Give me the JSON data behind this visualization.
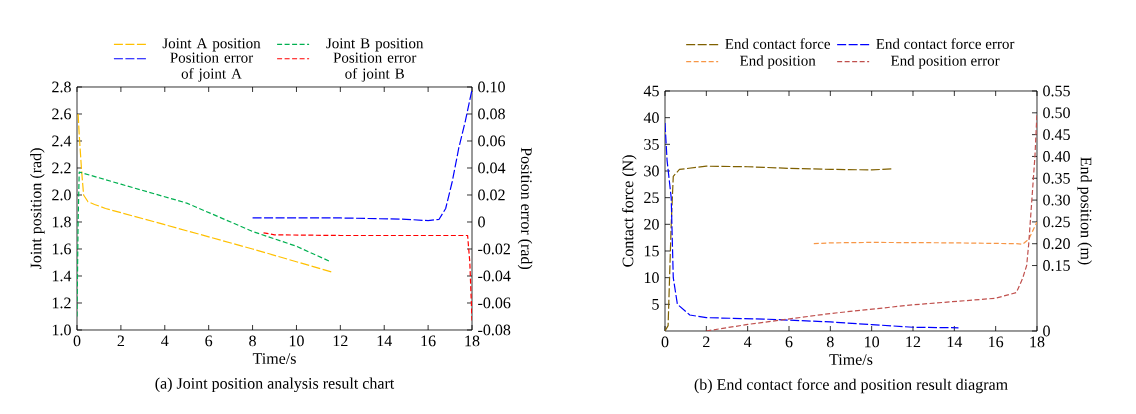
{
  "chart_data": [
    {
      "type": "line",
      "title": "(a) Joint position analysis result chart",
      "xlabel": "Time/s",
      "ylabel": "Joint position (rad)",
      "y2label": "Position error (rad)",
      "xlim": [
        0,
        18
      ],
      "xticks": [
        0,
        2,
        4,
        6,
        8,
        10,
        12,
        14,
        16,
        18
      ],
      "ylim": [
        1.0,
        2.8
      ],
      "yticks": [
        {
          "value": 1.0,
          "label": "1.0"
        },
        1.2,
        1.4,
        1.6,
        1.8,
        {
          "value": 2.0,
          "label": "2.0"
        },
        2.2,
        2.4,
        2.6,
        2.8
      ],
      "y2lim": [
        -0.08,
        0.1
      ],
      "y2ticks": [
        {
          "value": -0.08,
          "label": "-0.08"
        },
        {
          "value": -0.06,
          "label": "-0.06"
        },
        {
          "value": -0.04,
          "label": "-0.04"
        },
        {
          "value": -0.02,
          "label": "-0.02"
        },
        0,
        {
          "value": 0.02,
          "label": "0.02"
        },
        {
          "value": 0.04,
          "label": "0.04"
        },
        {
          "value": 0.06,
          "label": "0.06"
        },
        {
          "value": 0.08,
          "label": "0.08"
        },
        {
          "value": 0.1,
          "label": "0.10"
        }
      ],
      "legend": "top",
      "line_style": "dashed",
      "series": [
        {
          "name": "Joint A position",
          "color": "#ffc000",
          "x": [
            0.05,
            0.1,
            0.2,
            0.3,
            0.5,
            0.8,
            1.3,
            4,
            8,
            11.6
          ],
          "values": [
            2.6,
            2.45,
            2.2,
            2.0,
            1.95,
            1.93,
            1.9,
            1.78,
            1.6,
            1.43
          ]
        },
        {
          "name": "Joint B position",
          "color": "#00b050",
          "x": [
            0,
            0.05,
            0.1,
            2,
            5,
            8,
            10,
            11.5
          ],
          "values": [
            1.1,
            1.8,
            2.17,
            2.08,
            1.94,
            1.73,
            1.62,
            1.51
          ]
        },
        {
          "name": "Position error of joint A",
          "color": "#0000ff",
          "axis": "y2",
          "x": [
            8,
            12,
            15,
            16,
            16.5,
            16.8,
            17.1,
            17.4,
            17.7,
            18
          ],
          "values": [
            0.003,
            0.003,
            0.002,
            0.001,
            0.002,
            0.01,
            0.03,
            0.055,
            0.075,
            0.098
          ]
        },
        {
          "name": "Position error of joint B",
          "color": "#ff0000",
          "axis": "y2",
          "x": [
            8.5,
            9,
            12,
            17.8,
            17.9,
            18
          ],
          "values": [
            -0.008,
            -0.0095,
            -0.01,
            -0.01,
            -0.03,
            -0.073
          ]
        }
      ]
    },
    {
      "type": "line",
      "title": "(b) End contact force and position result diagram",
      "xlabel": "Time/s",
      "ylabel": "Contact force (N)",
      "y2label": "End position (m)",
      "xlim": [
        0,
        18
      ],
      "xticks": [
        0,
        2,
        4,
        6,
        8,
        10,
        12,
        14,
        16,
        18
      ],
      "ylim": [
        0,
        45
      ],
      "yticks": [
        5,
        10,
        15,
        20,
        25,
        30,
        35,
        40,
        45
      ],
      "y2lim": [
        0,
        0.55
      ],
      "y2ticks": [
        0,
        {
          "value": 0.15,
          "label": "0.15"
        },
        {
          "value": 0.2,
          "label": "0.20"
        },
        {
          "value": 0.25,
          "label": "0.25"
        },
        {
          "value": 0.3,
          "label": "0.30"
        },
        {
          "value": 0.35,
          "label": "0.35"
        },
        {
          "value": 0.4,
          "label": "0.40"
        },
        {
          "value": 0.45,
          "label": "0.45"
        },
        {
          "value": 0.5,
          "label": "0.50"
        },
        {
          "value": 0.55,
          "label": "0.55"
        }
      ],
      "legend": "top",
      "line_style": "dashed",
      "series": [
        {
          "name": "End contact force",
          "color": "#7f6000",
          "x": [
            0,
            0.15,
            0.3,
            0.4,
            0.7,
            2,
            4,
            6,
            8,
            10,
            11
          ],
          "values": [
            0,
            1,
            20,
            29,
            30.3,
            30.9,
            30.8,
            30.5,
            30.3,
            30.2,
            30.4
          ]
        },
        {
          "name": "End contact force error",
          "color": "#0000ff",
          "x": [
            0,
            0.1,
            0.3,
            0.4,
            0.6,
            1.2,
            2,
            5,
            8,
            10,
            12,
            14.2
          ],
          "values": [
            39,
            32,
            25,
            10,
            5,
            3,
            2.5,
            2.2,
            1.7,
            1.2,
            0.7,
            0.6
          ]
        },
        {
          "name": "End position",
          "color": "#f79646",
          "axis": "y2",
          "x": [
            7.2,
            8,
            10,
            14,
            17,
            17.3,
            17.6,
            17.8,
            18
          ],
          "values": [
            0.2,
            0.202,
            0.203,
            0.202,
            0.2,
            0.199,
            0.21,
            0.23,
            0.25
          ]
        },
        {
          "name": "End position error",
          "color": "#c0504d",
          "axis": "y2",
          "x": [
            2,
            4,
            8,
            12,
            16,
            17,
            17.3,
            17.5,
            17.6,
            17.75,
            17.9,
            18
          ],
          "values": [
            0,
            0.015,
            0.04,
            0.06,
            0.075,
            0.088,
            0.12,
            0.15,
            0.2,
            0.3,
            0.4,
            0.5
          ]
        }
      ]
    }
  ]
}
